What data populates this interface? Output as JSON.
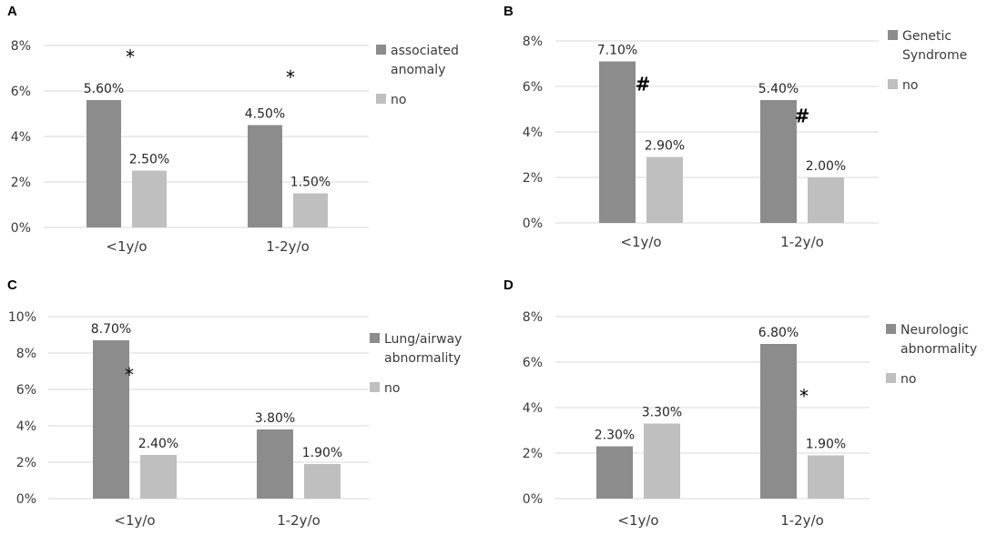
{
  "colors": {
    "dark": "#8c8c8c",
    "light": "#bfbfbf",
    "grid": "#d9d9d9"
  },
  "chart_data": [
    {
      "panel": "A",
      "type": "bar",
      "categories": [
        "<1y/o",
        "1-2y/o"
      ],
      "series": [
        {
          "name": "associated anomaly",
          "values": [
            5.6,
            4.5
          ]
        },
        {
          "name": "no",
          "values": [
            2.5,
            1.5
          ]
        }
      ],
      "data_labels": [
        [
          "5.60%",
          "4.50%"
        ],
        [
          "2.50%",
          "1.50%"
        ]
      ],
      "ylim": [
        0,
        8
      ],
      "yticks": [
        0,
        2,
        4,
        6,
        8
      ],
      "tick_labels": [
        "0%",
        "2%",
        "4%",
        "6%",
        "8%"
      ],
      "significance": [
        {
          "symbol": "*",
          "category": 0,
          "level": 7.5
        },
        {
          "symbol": "*",
          "category": 1,
          "level": 6.6
        }
      ],
      "legend_lines": [
        [
          "associated",
          "anomaly"
        ],
        [
          "no"
        ]
      ],
      "legend_position": "right",
      "grid": true
    },
    {
      "panel": "B",
      "type": "bar",
      "categories": [
        "<1y/o",
        "1-2y/o"
      ],
      "series": [
        {
          "name": "Genetic Syndrome",
          "values": [
            7.1,
            5.4
          ]
        },
        {
          "name": "no",
          "values": [
            2.9,
            2.0
          ]
        }
      ],
      "data_labels": [
        [
          "7.10%",
          "5.40%"
        ],
        [
          "2.90%",
          "2.00%"
        ]
      ],
      "ylim": [
        0,
        8
      ],
      "yticks": [
        0,
        2,
        4,
        6,
        8
      ],
      "tick_labels": [
        "0%",
        "2%",
        "4%",
        "6%",
        "8%"
      ],
      "significance": [
        {
          "symbol": "#",
          "category": 0,
          "level": 6.1
        },
        {
          "symbol": "#",
          "category": 1,
          "level": 4.7
        }
      ],
      "legend_lines": [
        [
          "Genetic",
          "Syndrome"
        ],
        [
          "no"
        ]
      ],
      "legend_position": "right",
      "grid": true
    },
    {
      "panel": "C",
      "type": "bar",
      "categories": [
        "<1y/o",
        "1-2y/o"
      ],
      "series": [
        {
          "name": "Lung/airway abnormality",
          "values": [
            8.7,
            3.8
          ]
        },
        {
          "name": "no",
          "values": [
            2.4,
            1.9
          ]
        }
      ],
      "data_labels": [
        [
          "8.70%",
          "3.80%"
        ],
        [
          "2.40%",
          "1.90%"
        ]
      ],
      "ylim": [
        0,
        10
      ],
      "yticks": [
        0,
        2,
        4,
        6,
        8,
        10
      ],
      "tick_labels": [
        "0%",
        "2%",
        "4%",
        "6%",
        "8%",
        "10%"
      ],
      "significance": [
        {
          "symbol": "*",
          "category": 0,
          "level": 6.8
        }
      ],
      "legend_lines": [
        [
          "Lung/airway",
          "abnormality"
        ],
        [
          "no"
        ]
      ],
      "legend_position": "right",
      "grid": true
    },
    {
      "panel": "D",
      "type": "bar",
      "categories": [
        "<1y/o",
        "1-2y/o"
      ],
      "series": [
        {
          "name": "Neurologic abnormality",
          "values": [
            2.3,
            6.8
          ]
        },
        {
          "name": "no",
          "values": [
            3.3,
            1.9
          ]
        }
      ],
      "data_labels": [
        [
          "2.30%",
          "6.80%"
        ],
        [
          "3.30%",
          "1.90%"
        ]
      ],
      "ylim": [
        0,
        8
      ],
      "yticks": [
        0,
        2,
        4,
        6,
        8
      ],
      "tick_labels": [
        "0%",
        "2%",
        "4%",
        "6%",
        "8%"
      ],
      "significance": [
        {
          "symbol": "*",
          "category": 1,
          "level": 4.5
        }
      ],
      "legend_lines": [
        [
          "Neurologic",
          "abnormality"
        ],
        [
          "no"
        ]
      ],
      "legend_position": "right",
      "grid": true
    }
  ]
}
